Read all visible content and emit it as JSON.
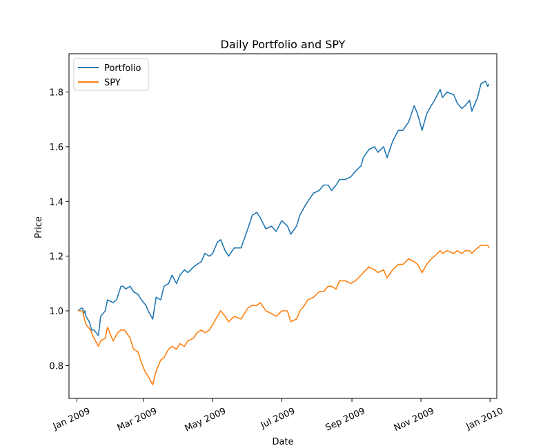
{
  "chart_data": {
    "type": "line",
    "title": "Daily Portfolio and SPY",
    "xlabel": "Date",
    "ylabel": "Price",
    "xlim": [
      "2008-12-25",
      "2010-01-07"
    ],
    "ylim": [
      0.68,
      1.94
    ],
    "grid": false,
    "legend_position": "top-left",
    "x_ticks": [
      {
        "date": "2009-01-01",
        "label": "Jan 2009"
      },
      {
        "date": "2009-03-01",
        "label": "Mar 2009"
      },
      {
        "date": "2009-05-01",
        "label": "May 2009"
      },
      {
        "date": "2009-07-01",
        "label": "Jul 2009"
      },
      {
        "date": "2009-09-01",
        "label": "Sep 2009"
      },
      {
        "date": "2009-11-01",
        "label": "Nov 2009"
      },
      {
        "date": "2010-01-01",
        "label": "Jan 2010"
      }
    ],
    "y_ticks": [
      {
        "value": 0.8,
        "label": "0.8"
      },
      {
        "value": 1.0,
        "label": "1.0"
      },
      {
        "value": 1.2,
        "label": "1.2"
      },
      {
        "value": 1.4,
        "label": "1.4"
      },
      {
        "value": 1.6,
        "label": "1.6"
      },
      {
        "value": 1.8,
        "label": "1.8"
      }
    ],
    "series": [
      {
        "name": "Portfolio",
        "color": "#1f77b4",
        "points": [
          [
            "2009-01-02",
            1.0
          ],
          [
            "2009-01-05",
            1.01
          ],
          [
            "2009-01-06",
            1.01
          ],
          [
            "2009-01-07",
            0.99
          ],
          [
            "2009-01-08",
            1.0
          ],
          [
            "2009-01-09",
            0.98
          ],
          [
            "2009-01-12",
            0.96
          ],
          [
            "2009-01-14",
            0.93
          ],
          [
            "2009-01-16",
            0.93
          ],
          [
            "2009-01-20",
            0.91
          ],
          [
            "2009-01-22",
            0.98
          ],
          [
            "2009-01-26",
            1.0
          ],
          [
            "2009-01-28",
            1.04
          ],
          [
            "2009-02-02",
            1.03
          ],
          [
            "2009-02-05",
            1.04
          ],
          [
            "2009-02-09",
            1.09
          ],
          [
            "2009-02-11",
            1.09
          ],
          [
            "2009-02-13",
            1.08
          ],
          [
            "2009-02-17",
            1.09
          ],
          [
            "2009-02-20",
            1.07
          ],
          [
            "2009-02-24",
            1.06
          ],
          [
            "2009-02-27",
            1.04
          ],
          [
            "2009-03-03",
            1.02
          ],
          [
            "2009-03-05",
            1.0
          ],
          [
            "2009-03-09",
            0.97
          ],
          [
            "2009-03-12",
            1.05
          ],
          [
            "2009-03-16",
            1.04
          ],
          [
            "2009-03-19",
            1.09
          ],
          [
            "2009-03-23",
            1.1
          ],
          [
            "2009-03-26",
            1.13
          ],
          [
            "2009-03-30",
            1.1
          ],
          [
            "2009-04-02",
            1.13
          ],
          [
            "2009-04-06",
            1.15
          ],
          [
            "2009-04-09",
            1.14
          ],
          [
            "2009-04-14",
            1.16
          ],
          [
            "2009-04-17",
            1.17
          ],
          [
            "2009-04-21",
            1.18
          ],
          [
            "2009-04-24",
            1.21
          ],
          [
            "2009-04-28",
            1.2
          ],
          [
            "2009-05-01",
            1.21
          ],
          [
            "2009-05-05",
            1.25
          ],
          [
            "2009-05-08",
            1.26
          ],
          [
            "2009-05-12",
            1.22
          ],
          [
            "2009-05-15",
            1.2
          ],
          [
            "2009-05-20",
            1.23
          ],
          [
            "2009-05-26",
            1.23
          ],
          [
            "2009-06-01",
            1.3
          ],
          [
            "2009-06-05",
            1.35
          ],
          [
            "2009-06-09",
            1.36
          ],
          [
            "2009-06-12",
            1.34
          ],
          [
            "2009-06-17",
            1.3
          ],
          [
            "2009-06-22",
            1.31
          ],
          [
            "2009-06-26",
            1.29
          ],
          [
            "2009-07-01",
            1.33
          ],
          [
            "2009-07-06",
            1.31
          ],
          [
            "2009-07-09",
            1.28
          ],
          [
            "2009-07-14",
            1.31
          ],
          [
            "2009-07-17",
            1.35
          ],
          [
            "2009-07-21",
            1.38
          ],
          [
            "2009-07-24",
            1.4
          ],
          [
            "2009-07-29",
            1.43
          ],
          [
            "2009-08-03",
            1.44
          ],
          [
            "2009-08-07",
            1.46
          ],
          [
            "2009-08-11",
            1.46
          ],
          [
            "2009-08-14",
            1.44
          ],
          [
            "2009-08-18",
            1.46
          ],
          [
            "2009-08-21",
            1.48
          ],
          [
            "2009-08-26",
            1.48
          ],
          [
            "2009-08-31",
            1.49
          ],
          [
            "2009-09-04",
            1.51
          ],
          [
            "2009-09-09",
            1.53
          ],
          [
            "2009-09-11",
            1.56
          ],
          [
            "2009-09-16",
            1.59
          ],
          [
            "2009-09-21",
            1.6
          ],
          [
            "2009-09-24",
            1.58
          ],
          [
            "2009-09-29",
            1.6
          ],
          [
            "2009-10-02",
            1.56
          ],
          [
            "2009-10-07",
            1.62
          ],
          [
            "2009-10-12",
            1.66
          ],
          [
            "2009-10-16",
            1.66
          ],
          [
            "2009-10-21",
            1.69
          ],
          [
            "2009-10-26",
            1.75
          ],
          [
            "2009-10-29",
            1.72
          ],
          [
            "2009-11-02",
            1.66
          ],
          [
            "2009-11-06",
            1.72
          ],
          [
            "2009-11-10",
            1.75
          ],
          [
            "2009-11-13",
            1.77
          ],
          [
            "2009-11-18",
            1.81
          ],
          [
            "2009-11-20",
            1.78
          ],
          [
            "2009-11-24",
            1.8
          ],
          [
            "2009-11-30",
            1.79
          ],
          [
            "2009-12-03",
            1.76
          ],
          [
            "2009-12-07",
            1.74
          ],
          [
            "2009-12-10",
            1.75
          ],
          [
            "2009-12-14",
            1.77
          ],
          [
            "2009-12-16",
            1.73
          ],
          [
            "2009-12-21",
            1.78
          ],
          [
            "2009-12-24",
            1.83
          ],
          [
            "2009-12-28",
            1.84
          ],
          [
            "2009-12-30",
            1.82
          ],
          [
            "2009-12-31",
            1.83
          ]
        ]
      },
      {
        "name": "SPY",
        "color": "#ff7f0e",
        "points": [
          [
            "2009-01-02",
            1.0
          ],
          [
            "2009-01-05",
            1.0
          ],
          [
            "2009-01-06",
            1.0
          ],
          [
            "2009-01-07",
            0.98
          ],
          [
            "2009-01-09",
            0.95
          ],
          [
            "2009-01-13",
            0.93
          ],
          [
            "2009-01-15",
            0.91
          ],
          [
            "2009-01-20",
            0.87
          ],
          [
            "2009-01-22",
            0.89
          ],
          [
            "2009-01-26",
            0.9
          ],
          [
            "2009-01-28",
            0.94
          ],
          [
            "2009-02-02",
            0.89
          ],
          [
            "2009-02-06",
            0.92
          ],
          [
            "2009-02-09",
            0.93
          ],
          [
            "2009-02-12",
            0.93
          ],
          [
            "2009-02-17",
            0.9
          ],
          [
            "2009-02-20",
            0.86
          ],
          [
            "2009-02-24",
            0.85
          ],
          [
            "2009-02-27",
            0.81
          ],
          [
            "2009-03-02",
            0.78
          ],
          [
            "2009-03-05",
            0.76
          ],
          [
            "2009-03-09",
            0.73
          ],
          [
            "2009-03-12",
            0.78
          ],
          [
            "2009-03-16",
            0.82
          ],
          [
            "2009-03-19",
            0.83
          ],
          [
            "2009-03-23",
            0.86
          ],
          [
            "2009-03-26",
            0.87
          ],
          [
            "2009-03-30",
            0.86
          ],
          [
            "2009-04-02",
            0.88
          ],
          [
            "2009-04-06",
            0.87
          ],
          [
            "2009-04-09",
            0.89
          ],
          [
            "2009-04-14",
            0.9
          ],
          [
            "2009-04-17",
            0.92
          ],
          [
            "2009-04-21",
            0.93
          ],
          [
            "2009-04-24",
            0.92
          ],
          [
            "2009-04-28",
            0.93
          ],
          [
            "2009-05-01",
            0.95
          ],
          [
            "2009-05-05",
            0.98
          ],
          [
            "2009-05-08",
            1.0
          ],
          [
            "2009-05-12",
            0.98
          ],
          [
            "2009-05-15",
            0.96
          ],
          [
            "2009-05-20",
            0.98
          ],
          [
            "2009-05-26",
            0.97
          ],
          [
            "2009-06-01",
            1.01
          ],
          [
            "2009-06-05",
            1.02
          ],
          [
            "2009-06-09",
            1.02
          ],
          [
            "2009-06-12",
            1.03
          ],
          [
            "2009-06-17",
            1.0
          ],
          [
            "2009-06-22",
            0.99
          ],
          [
            "2009-06-26",
            0.98
          ],
          [
            "2009-07-01",
            1.0
          ],
          [
            "2009-07-06",
            1.0
          ],
          [
            "2009-07-09",
            0.96
          ],
          [
            "2009-07-14",
            0.97
          ],
          [
            "2009-07-17",
            1.0
          ],
          [
            "2009-07-21",
            1.02
          ],
          [
            "2009-07-24",
            1.04
          ],
          [
            "2009-07-29",
            1.05
          ],
          [
            "2009-08-03",
            1.07
          ],
          [
            "2009-08-07",
            1.07
          ],
          [
            "2009-08-11",
            1.09
          ],
          [
            "2009-08-14",
            1.09
          ],
          [
            "2009-08-18",
            1.08
          ],
          [
            "2009-08-21",
            1.11
          ],
          [
            "2009-08-26",
            1.11
          ],
          [
            "2009-08-31",
            1.1
          ],
          [
            "2009-09-04",
            1.11
          ],
          [
            "2009-09-09",
            1.13
          ],
          [
            "2009-09-11",
            1.14
          ],
          [
            "2009-09-16",
            1.16
          ],
          [
            "2009-09-21",
            1.15
          ],
          [
            "2009-09-24",
            1.14
          ],
          [
            "2009-09-29",
            1.15
          ],
          [
            "2009-10-02",
            1.12
          ],
          [
            "2009-10-07",
            1.15
          ],
          [
            "2009-10-12",
            1.17
          ],
          [
            "2009-10-16",
            1.17
          ],
          [
            "2009-10-21",
            1.19
          ],
          [
            "2009-10-26",
            1.18
          ],
          [
            "2009-10-29",
            1.17
          ],
          [
            "2009-11-02",
            1.14
          ],
          [
            "2009-11-06",
            1.17
          ],
          [
            "2009-11-10",
            1.19
          ],
          [
            "2009-11-13",
            1.2
          ],
          [
            "2009-11-18",
            1.22
          ],
          [
            "2009-11-20",
            1.21
          ],
          [
            "2009-11-24",
            1.22
          ],
          [
            "2009-11-30",
            1.21
          ],
          [
            "2009-12-03",
            1.22
          ],
          [
            "2009-12-07",
            1.21
          ],
          [
            "2009-12-10",
            1.22
          ],
          [
            "2009-12-14",
            1.22
          ],
          [
            "2009-12-16",
            1.21
          ],
          [
            "2009-12-21",
            1.23
          ],
          [
            "2009-12-24",
            1.24
          ],
          [
            "2009-12-28",
            1.24
          ],
          [
            "2009-12-30",
            1.24
          ],
          [
            "2009-12-31",
            1.23
          ]
        ]
      }
    ]
  }
}
